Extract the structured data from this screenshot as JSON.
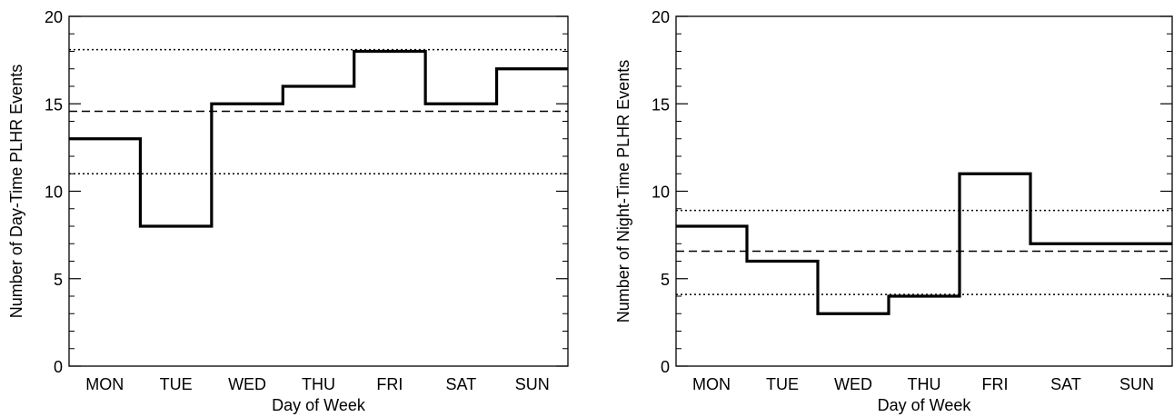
{
  "chart_data": [
    {
      "type": "line",
      "step": true,
      "title": "",
      "xlabel": "Day of Week",
      "ylabel": "Number of Day-Time PLHR Events",
      "categories": [
        "MON",
        "TUE",
        "WED",
        "THU",
        "FRI",
        "SAT",
        "SUN"
      ],
      "values": [
        13,
        8,
        15,
        16,
        18,
        15,
        17
      ],
      "ylim": [
        0,
        20
      ],
      "yticks": [
        "0",
        "5",
        "10",
        "15",
        "20"
      ],
      "reference_lines": [
        {
          "style": "dashed",
          "value": 14.57
        },
        {
          "style": "dotted",
          "value": 18.1
        },
        {
          "style": "dotted",
          "value": 11.0
        }
      ],
      "grid": false,
      "legend": "none"
    },
    {
      "type": "line",
      "step": true,
      "title": "",
      "xlabel": "Day of Week",
      "ylabel": "Number of Night-Time PLHR Events",
      "categories": [
        "MON",
        "TUE",
        "WED",
        "THU",
        "FRI",
        "SAT",
        "SUN"
      ],
      "values": [
        8,
        6,
        3,
        4,
        11,
        7,
        7
      ],
      "ylim": [
        0,
        20
      ],
      "yticks": [
        "0",
        "5",
        "10",
        "15",
        "20"
      ],
      "reference_lines": [
        {
          "style": "dashed",
          "value": 6.57
        },
        {
          "style": "dotted",
          "value": 8.9
        },
        {
          "style": "dotted",
          "value": 4.1
        }
      ],
      "grid": false,
      "legend": "none"
    }
  ]
}
